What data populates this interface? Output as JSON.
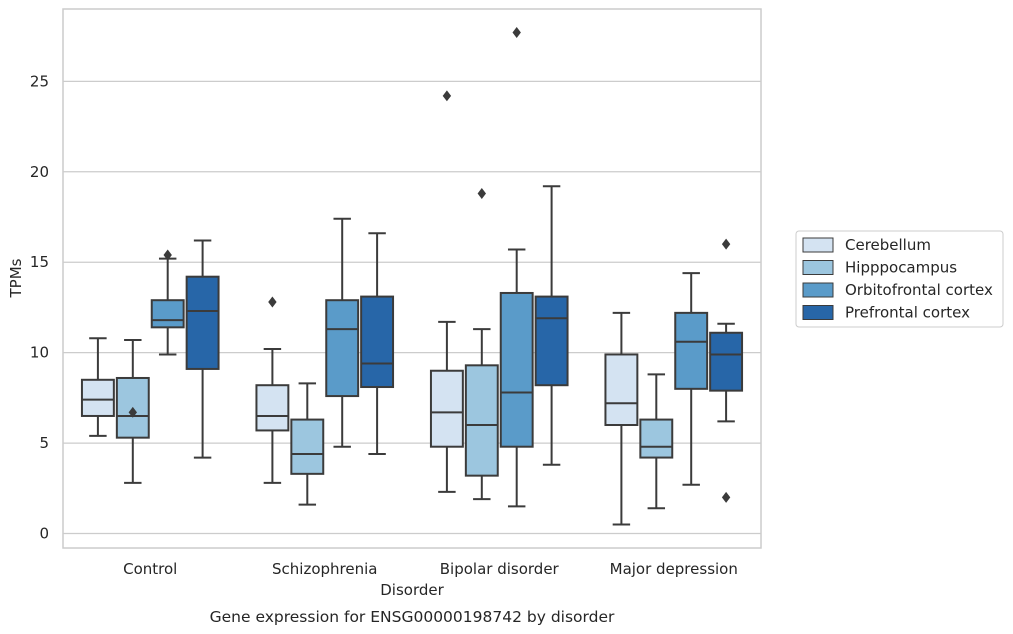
{
  "chart_data": {
    "type": "box",
    "xlabel": "Disorder",
    "ylabel": "TPMs",
    "caption": "Gene expression for ENSG00000198742 by disorder",
    "ylim": [
      -0.8,
      29
    ],
    "yticks": [
      0,
      5,
      10,
      15,
      20,
      25
    ],
    "grid": "horizontal",
    "legend_position": "right",
    "categories": [
      "Control",
      "Schizophrenia",
      "Bipolar disorder",
      "Major depression"
    ],
    "series": [
      {
        "name": "Cerebellum",
        "color": "#d4e3f2",
        "boxes": [
          {
            "whisker_low": 5.4,
            "q1": 6.5,
            "median": 7.4,
            "q3": 8.5,
            "whisker_high": 10.8,
            "outliers": []
          },
          {
            "whisker_low": 2.8,
            "q1": 5.7,
            "median": 6.5,
            "q3": 8.2,
            "whisker_high": 10.2,
            "outliers": [
              12.8
            ]
          },
          {
            "whisker_low": 2.3,
            "q1": 4.8,
            "median": 6.7,
            "q3": 9.0,
            "whisker_high": 11.7,
            "outliers": [
              24.2
            ]
          },
          {
            "whisker_low": 0.5,
            "q1": 6.0,
            "median": 7.2,
            "q3": 9.9,
            "whisker_high": 12.2,
            "outliers": []
          }
        ]
      },
      {
        "name": "Hipppocampus",
        "color": "#9cc6df",
        "boxes": [
          {
            "whisker_low": 2.8,
            "q1": 5.3,
            "median": 6.5,
            "q3": 8.6,
            "whisker_high": 10.7,
            "outliers": [
              6.7
            ]
          },
          {
            "whisker_low": 1.6,
            "q1": 3.3,
            "median": 4.4,
            "q3": 6.3,
            "whisker_high": 8.3,
            "outliers": []
          },
          {
            "whisker_low": 1.9,
            "q1": 3.2,
            "median": 6.0,
            "q3": 9.3,
            "whisker_high": 11.3,
            "outliers": [
              18.8
            ]
          },
          {
            "whisker_low": 1.4,
            "q1": 4.2,
            "median": 4.8,
            "q3": 6.3,
            "whisker_high": 8.8,
            "outliers": []
          }
        ]
      },
      {
        "name": "Orbitofrontal cortex",
        "color": "#5a9bc9",
        "boxes": [
          {
            "whisker_low": 9.9,
            "q1": 11.4,
            "median": 11.8,
            "q3": 12.9,
            "whisker_high": 15.2,
            "outliers": [
              15.4
            ]
          },
          {
            "whisker_low": 4.8,
            "q1": 7.6,
            "median": 11.3,
            "q3": 12.9,
            "whisker_high": 17.4,
            "outliers": []
          },
          {
            "whisker_low": 1.5,
            "q1": 4.8,
            "median": 7.8,
            "q3": 13.3,
            "whisker_high": 15.7,
            "outliers": [
              27.7
            ]
          },
          {
            "whisker_low": 2.7,
            "q1": 8.0,
            "median": 10.6,
            "q3": 12.2,
            "whisker_high": 14.4,
            "outliers": []
          }
        ]
      },
      {
        "name": "Prefrontal cortex",
        "color": "#2766a8",
        "boxes": [
          {
            "whisker_low": 4.2,
            "q1": 9.1,
            "median": 12.3,
            "q3": 14.2,
            "whisker_high": 16.2,
            "outliers": []
          },
          {
            "whisker_low": 4.4,
            "q1": 8.1,
            "median": 9.4,
            "q3": 13.1,
            "whisker_high": 16.6,
            "outliers": []
          },
          {
            "whisker_low": 3.8,
            "q1": 8.2,
            "median": 11.9,
            "q3": 13.1,
            "whisker_high": 19.2,
            "outliers": []
          },
          {
            "whisker_low": 6.2,
            "q1": 7.9,
            "median": 9.9,
            "q3": 11.1,
            "whisker_high": 11.6,
            "outliers": [
              16.0,
              2.0
            ]
          }
        ]
      }
    ]
  }
}
